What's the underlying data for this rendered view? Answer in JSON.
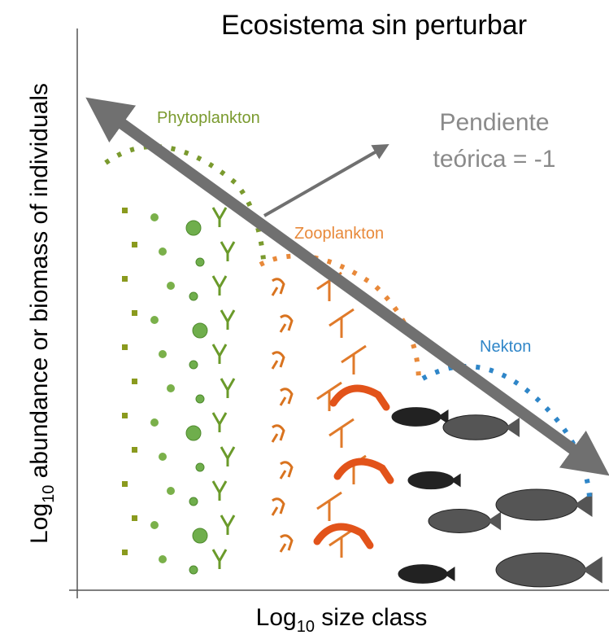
{
  "title": "Ecosistema sin perturbar",
  "slope_label": {
    "line1": "Pendiente",
    "line2": "teórica = -1"
  },
  "groups": {
    "phytoplankton": "Phytoplankton",
    "zooplankton": "Zooplankton",
    "nekton": "Nekton"
  },
  "y_axis": {
    "prefix": "Log",
    "subscript": "10",
    "rest": " abundance or biomass of individuals"
  },
  "x_axis": {
    "prefix": "Log",
    "subscript": "10",
    "rest": " size class"
  }
}
